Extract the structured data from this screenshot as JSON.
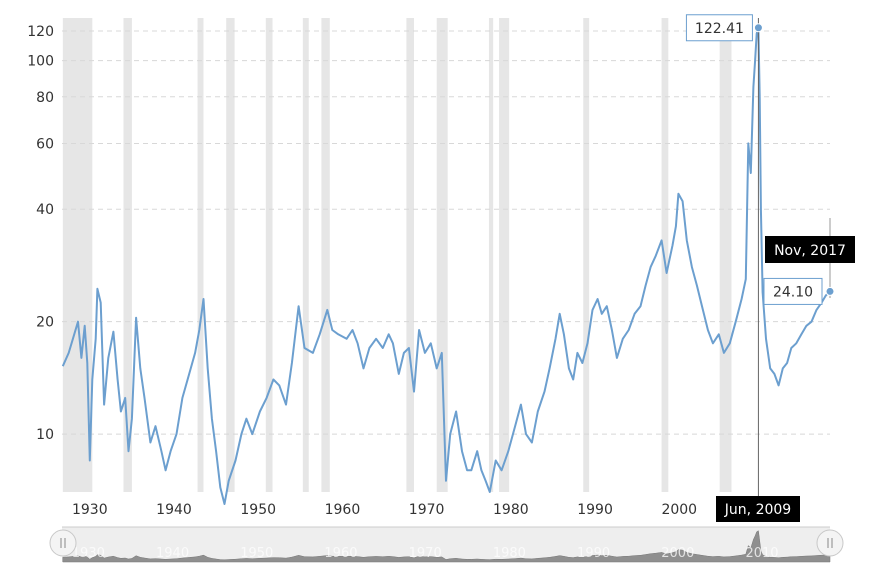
{
  "chart_data": {
    "type": "line",
    "x_unit": "year",
    "y_scale": "log",
    "ylim": [
      7,
      130
    ],
    "xlim": [
      1926.7,
      2017.9
    ],
    "grid": true,
    "y_ticks": [
      10,
      20,
      40,
      60,
      80,
      100,
      120
    ],
    "y_tick_labels": [
      "10",
      "20",
      "40",
      "60",
      "80",
      "100",
      "120"
    ],
    "x_ticks": [
      1930,
      1940,
      1950,
      1960,
      1970,
      1980,
      1990,
      2000,
      2010
    ],
    "x_tick_labels": [
      "1930",
      "1940",
      "1950",
      "1960",
      "1970",
      "1980",
      "1990",
      "2000"
    ],
    "navigator_labels": [
      "1930",
      "1940",
      "1950",
      "1960",
      "1970",
      "1980",
      "1990",
      "2000",
      "2010"
    ],
    "recession_bands": [
      [
        1926.8,
        1930.3
      ],
      [
        1934.0,
        1935.0
      ],
      [
        1942.8,
        1943.5
      ],
      [
        1946.2,
        1947.2
      ],
      [
        1950.9,
        1951.7
      ],
      [
        1955.3,
        1956.0
      ],
      [
        1957.5,
        1958.5
      ],
      [
        1967.6,
        1968.5
      ],
      [
        1971.2,
        1972.5
      ],
      [
        1977.4,
        1977.9
      ],
      [
        1978.6,
        1979.8
      ],
      [
        1988.6,
        1989.3
      ],
      [
        1997.9,
        1998.7
      ],
      [
        2004.8,
        2006.2
      ]
    ],
    "series": [
      {
        "values": [
          [
            1926.8,
            15.2
          ],
          [
            1927.5,
            16.5
          ],
          [
            1928.0,
            18.0
          ],
          [
            1928.6,
            20.0
          ],
          [
            1929.0,
            16.0
          ],
          [
            1929.4,
            19.5
          ],
          [
            1929.7,
            15.5
          ],
          [
            1930.0,
            8.5
          ],
          [
            1930.3,
            14.0
          ],
          [
            1930.7,
            18.0
          ],
          [
            1930.9,
            24.5
          ],
          [
            1931.3,
            22.5
          ],
          [
            1931.7,
            12.0
          ],
          [
            1932.2,
            16.0
          ],
          [
            1932.8,
            18.8
          ],
          [
            1933.3,
            14.0
          ],
          [
            1933.7,
            11.5
          ],
          [
            1934.2,
            12.5
          ],
          [
            1934.6,
            9.0
          ],
          [
            1935.0,
            11.0
          ],
          [
            1935.5,
            20.5
          ],
          [
            1936.0,
            15.0
          ],
          [
            1936.5,
            12.5
          ],
          [
            1937.2,
            9.5
          ],
          [
            1937.8,
            10.5
          ],
          [
            1938.5,
            9.0
          ],
          [
            1939.0,
            8.0
          ],
          [
            1939.6,
            9.0
          ],
          [
            1940.3,
            10.0
          ],
          [
            1941.0,
            12.5
          ],
          [
            1941.8,
            14.5
          ],
          [
            1942.5,
            16.5
          ],
          [
            1943.0,
            19.0
          ],
          [
            1943.5,
            23.0
          ],
          [
            1944.0,
            15.0
          ],
          [
            1944.5,
            11.0
          ],
          [
            1945.0,
            9.0
          ],
          [
            1945.5,
            7.2
          ],
          [
            1946.0,
            6.5
          ],
          [
            1946.5,
            7.5
          ],
          [
            1947.3,
            8.5
          ],
          [
            1948.0,
            10.0
          ],
          [
            1948.6,
            11.0
          ],
          [
            1949.3,
            10.0
          ],
          [
            1950.2,
            11.5
          ],
          [
            1951.0,
            12.5
          ],
          [
            1951.8,
            14.0
          ],
          [
            1952.5,
            13.5
          ],
          [
            1953.3,
            12.0
          ],
          [
            1954.0,
            15.5
          ],
          [
            1954.8,
            22.0
          ],
          [
            1955.5,
            17.0
          ],
          [
            1956.5,
            16.5
          ],
          [
            1957.3,
            18.5
          ],
          [
            1958.2,
            21.5
          ],
          [
            1958.8,
            19.0
          ],
          [
            1959.5,
            18.5
          ],
          [
            1960.5,
            18.0
          ],
          [
            1961.2,
            19.0
          ],
          [
            1961.8,
            17.5
          ],
          [
            1962.5,
            15.0
          ],
          [
            1963.2,
            17.0
          ],
          [
            1964.0,
            18.0
          ],
          [
            1964.8,
            17.0
          ],
          [
            1965.5,
            18.5
          ],
          [
            1966.0,
            17.5
          ],
          [
            1966.7,
            14.5
          ],
          [
            1967.3,
            16.5
          ],
          [
            1967.9,
            17.0
          ],
          [
            1968.5,
            13.0
          ],
          [
            1969.1,
            19.0
          ],
          [
            1969.8,
            16.5
          ],
          [
            1970.5,
            17.5
          ],
          [
            1971.2,
            15.0
          ],
          [
            1971.8,
            16.5
          ],
          [
            1972.3,
            7.5
          ],
          [
            1972.8,
            10.0
          ],
          [
            1973.5,
            11.5
          ],
          [
            1974.2,
            9.0
          ],
          [
            1974.8,
            8.0
          ],
          [
            1975.3,
            8.0
          ],
          [
            1976.0,
            9.0
          ],
          [
            1976.5,
            8.0
          ],
          [
            1977.0,
            7.5
          ],
          [
            1977.5,
            7.0
          ],
          [
            1978.2,
            8.5
          ],
          [
            1978.9,
            8.0
          ],
          [
            1979.7,
            9.0
          ],
          [
            1980.5,
            10.5
          ],
          [
            1981.2,
            12.0
          ],
          [
            1981.8,
            10.0
          ],
          [
            1982.5,
            9.5
          ],
          [
            1983.2,
            11.5
          ],
          [
            1984.0,
            13.0
          ],
          [
            1984.6,
            15.0
          ],
          [
            1985.3,
            18.0
          ],
          [
            1985.8,
            21.0
          ],
          [
            1986.3,
            18.5
          ],
          [
            1986.9,
            15.0
          ],
          [
            1987.4,
            14.0
          ],
          [
            1987.9,
            16.5
          ],
          [
            1988.5,
            15.5
          ],
          [
            1989.1,
            17.5
          ],
          [
            1989.7,
            21.5
          ],
          [
            1990.3,
            23.0
          ],
          [
            1990.8,
            21.0
          ],
          [
            1991.4,
            22.0
          ],
          [
            1992.0,
            19.0
          ],
          [
            1992.6,
            16.0
          ],
          [
            1993.3,
            18.0
          ],
          [
            1994.0,
            19.0
          ],
          [
            1994.7,
            21.0
          ],
          [
            1995.4,
            22.0
          ],
          [
            1996.0,
            25.0
          ],
          [
            1996.6,
            28.0
          ],
          [
            1997.2,
            30.0
          ],
          [
            1997.9,
            33.0
          ],
          [
            1998.5,
            27.0
          ],
          [
            1999.2,
            32.0
          ],
          [
            1999.6,
            36.0
          ],
          [
            1999.9,
            44.0
          ],
          [
            2000.4,
            42.0
          ],
          [
            2000.9,
            33.0
          ],
          [
            2001.5,
            28.0
          ],
          [
            2002.1,
            25.0
          ],
          [
            2002.7,
            22.0
          ],
          [
            2003.4,
            19.0
          ],
          [
            2004.0,
            17.5
          ],
          [
            2004.7,
            18.5
          ],
          [
            2005.3,
            16.5
          ],
          [
            2006.0,
            17.5
          ],
          [
            2006.7,
            20.0
          ],
          [
            2007.4,
            23.0
          ],
          [
            2007.9,
            26.0
          ],
          [
            2008.2,
            60.0
          ],
          [
            2008.5,
            50.0
          ],
          [
            2008.8,
            85.0
          ],
          [
            2009.0,
            100.0
          ],
          [
            2009.2,
            118.0
          ],
          [
            2009.4,
            122.41
          ],
          [
            2009.55,
            80.0
          ],
          [
            2009.7,
            40.0
          ],
          [
            2009.9,
            24.0
          ],
          [
            2010.3,
            18.0
          ],
          [
            2010.8,
            15.0
          ],
          [
            2011.3,
            14.5
          ],
          [
            2011.8,
            13.5
          ],
          [
            2012.3,
            15.0
          ],
          [
            2012.8,
            15.5
          ],
          [
            2013.3,
            17.0
          ],
          [
            2013.9,
            17.5
          ],
          [
            2014.5,
            18.5
          ],
          [
            2015.1,
            19.5
          ],
          [
            2015.7,
            20.0
          ],
          [
            2016.3,
            21.5
          ],
          [
            2016.9,
            22.5
          ],
          [
            2017.4,
            23.5
          ],
          [
            2017.9,
            24.1
          ]
        ]
      }
    ],
    "annotations": {
      "peak_label": "122.41",
      "peak_x": 2009.4,
      "peak_y": 122.41,
      "last_label": "24.10",
      "last_x": 2017.9,
      "last_y": 24.1,
      "crosshair_y_label": "Nov, 2017",
      "crosshair_x_label": "Jun, 2009",
      "crosshair_x": 2009.4
    }
  },
  "navigator": {
    "left_handle_icon": "grip-lines-icon",
    "right_handle_icon": "grip-lines-icon"
  },
  "colors": {
    "line": "#6c9fcf",
    "recession": "#e6e6e6",
    "grid": "#d8d8d8",
    "tooltip_bg": "#000000",
    "nav_fill": "#8f8f8f",
    "nav_bg": "#eeeeee"
  }
}
